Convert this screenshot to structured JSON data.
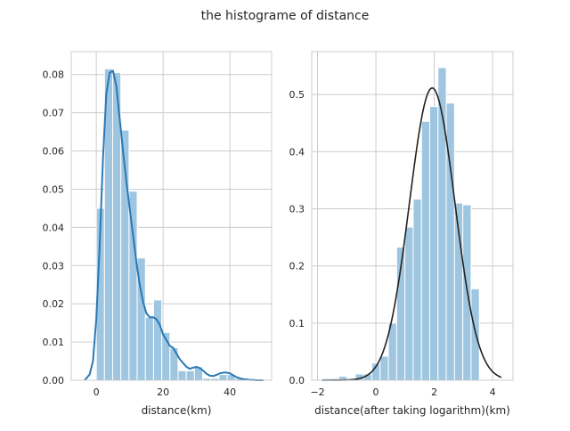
{
  "figure": {
    "suptitle": "the histograme of distance"
  },
  "colors": {
    "bar_fill": "#9fc6e0",
    "bar_edge": "#ffffff",
    "kde_line": "#2a78b3",
    "fit_line": "#222222",
    "grid": "#cccccc",
    "axes_edge": "#cccccc",
    "text": "#262626"
  },
  "chart_data": [
    {
      "type": "histogram",
      "title": "",
      "xlabel": "distance(km)",
      "ylabel": "",
      "xlim": [
        -7.5,
        52.5
      ],
      "ylim": [
        0,
        0.086
      ],
      "xticks": [
        0,
        20,
        40
      ],
      "yticks": [
        0.0,
        0.01,
        0.02,
        0.03,
        0.04,
        0.05,
        0.06,
        0.07,
        0.08
      ],
      "ytick_labels": [
        "0.00",
        "0.01",
        "0.02",
        "0.03",
        "0.04",
        "0.05",
        "0.06",
        "0.07",
        "0.08"
      ],
      "grid": true,
      "bin_width": 2.45,
      "bins": [
        {
          "x0": 0.0,
          "value": 0.045
        },
        {
          "x0": 2.45,
          "value": 0.0815
        },
        {
          "x0": 4.9,
          "value": 0.0805
        },
        {
          "x0": 7.35,
          "value": 0.0655
        },
        {
          "x0": 9.8,
          "value": 0.0495
        },
        {
          "x0": 12.25,
          "value": 0.032
        },
        {
          "x0": 14.7,
          "value": 0.0165
        },
        {
          "x0": 17.15,
          "value": 0.021
        },
        {
          "x0": 19.6,
          "value": 0.0125
        },
        {
          "x0": 22.05,
          "value": 0.0085
        },
        {
          "x0": 24.5,
          "value": 0.0025
        },
        {
          "x0": 26.95,
          "value": 0.0025
        },
        {
          "x0": 29.4,
          "value": 0.0035
        },
        {
          "x0": 31.85,
          "value": 0.0005
        },
        {
          "x0": 34.3,
          "value": 0.0005
        },
        {
          "x0": 36.75,
          "value": 0.0015
        },
        {
          "x0": 39.2,
          "value": 0.0015
        },
        {
          "x0": 41.65,
          "value": 0.0005
        }
      ],
      "kde": {
        "x": [
          -3.5,
          -2,
          -1,
          0,
          1,
          2,
          3,
          4,
          5,
          6,
          7,
          8,
          9,
          10,
          11,
          12,
          13,
          14,
          15,
          16,
          17,
          18,
          19,
          20,
          21,
          22,
          23,
          24,
          25,
          26,
          27,
          28,
          29,
          30,
          31,
          32,
          33,
          34,
          35,
          36,
          37,
          38,
          39,
          40,
          41,
          42,
          43,
          44,
          45,
          46,
          47,
          48,
          49,
          50
        ],
        "y": [
          0.0,
          0.0015,
          0.005,
          0.016,
          0.035,
          0.058,
          0.075,
          0.0805,
          0.081,
          0.077,
          0.0685,
          0.06,
          0.052,
          0.045,
          0.038,
          0.031,
          0.025,
          0.0205,
          0.0175,
          0.0165,
          0.0165,
          0.016,
          0.0145,
          0.012,
          0.0105,
          0.009,
          0.0085,
          0.007,
          0.0055,
          0.0045,
          0.0035,
          0.003,
          0.0033,
          0.0035,
          0.0032,
          0.0025,
          0.0017,
          0.0012,
          0.0011,
          0.0014,
          0.0018,
          0.002,
          0.002,
          0.0018,
          0.0013,
          0.0008,
          0.0005,
          0.0003,
          0.0002,
          0.0001,
          0.0001,
          0.0,
          0.0,
          0.0
        ]
      }
    },
    {
      "type": "histogram",
      "title": "",
      "xlabel": "distance(after taking logarithm)(km)",
      "ylabel": "",
      "xlim": [
        -2.2,
        4.7
      ],
      "ylim": [
        0,
        0.575
      ],
      "xticks": [
        -2,
        0,
        2,
        4
      ],
      "yticks": [
        0.0,
        0.1,
        0.2,
        0.3,
        0.4,
        0.5
      ],
      "ytick_labels": [
        "0.0",
        "0.1",
        "0.2",
        "0.3",
        "0.4",
        "0.5"
      ],
      "grid": true,
      "bin_width": 0.2835,
      "bins": [
        {
          "x0": -1.84,
          "value": 0.003
        },
        {
          "x0": -1.5565,
          "value": 0.003
        },
        {
          "x0": -1.273,
          "value": 0.007
        },
        {
          "x0": -0.9895,
          "value": 0.003
        },
        {
          "x0": -0.706,
          "value": 0.011
        },
        {
          "x0": -0.4225,
          "value": 0.011
        },
        {
          "x0": -0.139,
          "value": 0.03
        },
        {
          "x0": 0.1445,
          "value": 0.042
        },
        {
          "x0": 0.428,
          "value": 0.1
        },
        {
          "x0": 0.7115,
          "value": 0.233
        },
        {
          "x0": 0.995,
          "value": 0.268
        },
        {
          "x0": 1.2785,
          "value": 0.317
        },
        {
          "x0": 1.562,
          "value": 0.453
        },
        {
          "x0": 1.8455,
          "value": 0.479
        },
        {
          "x0": 2.129,
          "value": 0.547
        },
        {
          "x0": 2.4125,
          "value": 0.485
        },
        {
          "x0": 2.696,
          "value": 0.31
        },
        {
          "x0": 2.9795,
          "value": 0.307
        },
        {
          "x0": 3.263,
          "value": 0.16
        }
      ],
      "fit": {
        "distribution": "normal",
        "mean": 1.93,
        "std": 0.78,
        "x_range": [
          -1.85,
          4.3
        ]
      }
    }
  ]
}
